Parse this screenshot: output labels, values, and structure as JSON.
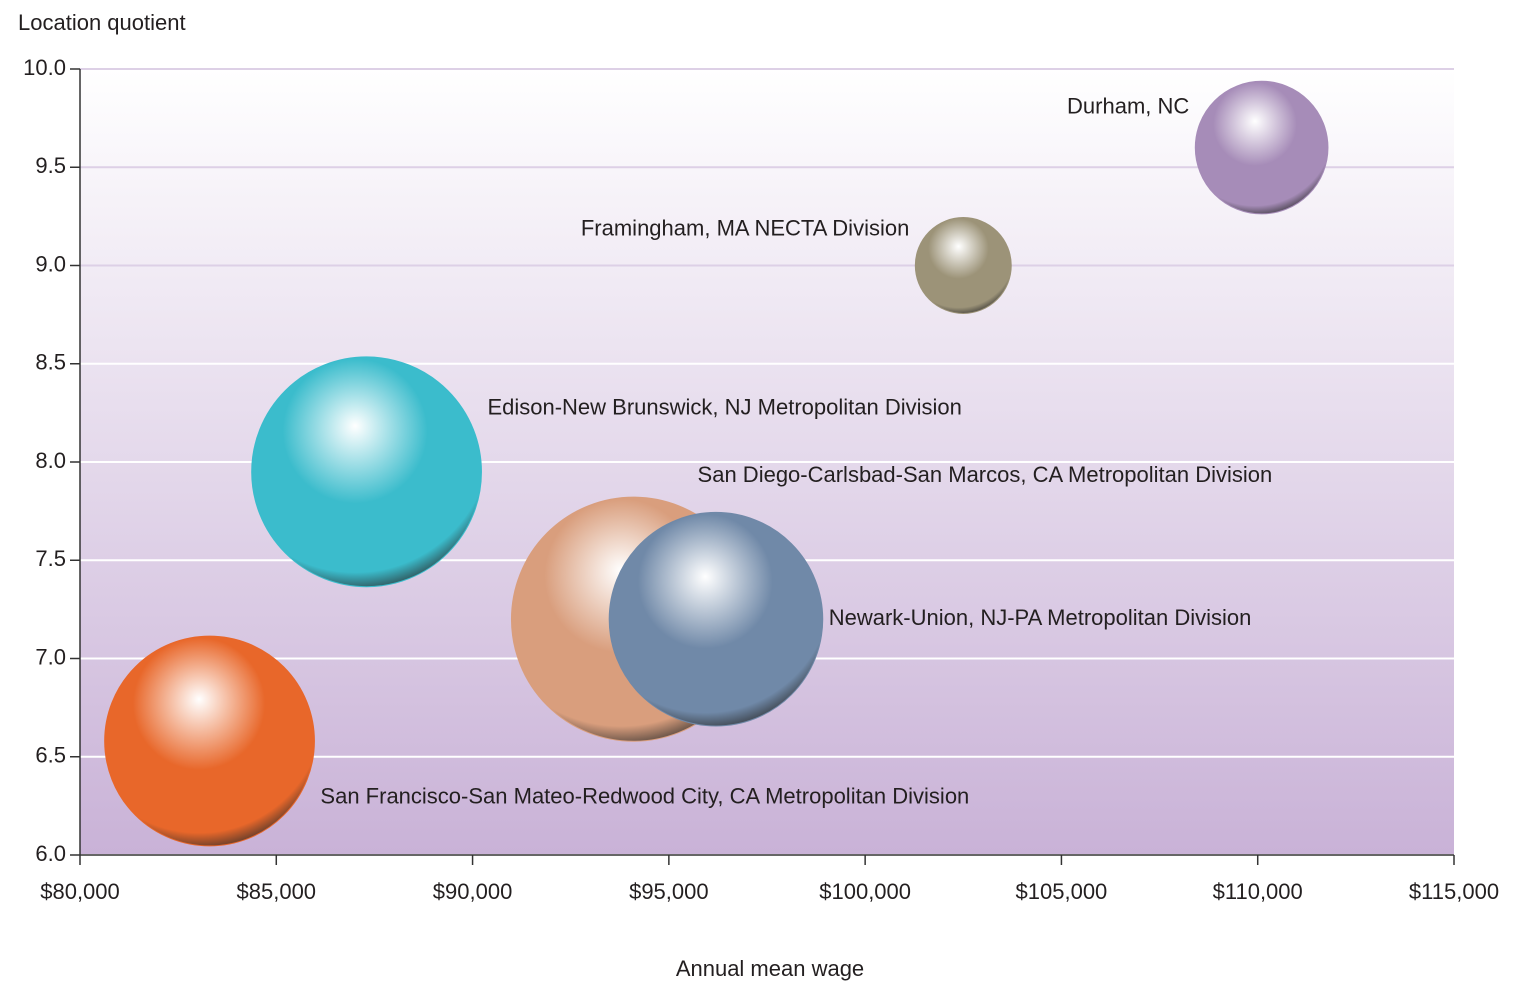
{
  "chart_data": {
    "type": "bubble",
    "y_label": "Location quotient",
    "x_label": "Annual mean wage",
    "xlim": [
      80000,
      115000
    ],
    "xticks": [
      {
        "value": 80000,
        "label": "$80,000"
      },
      {
        "value": 85000,
        "label": "$85,000"
      },
      {
        "value": 90000,
        "label": "$90,000"
      },
      {
        "value": 95000,
        "label": "$95,000"
      },
      {
        "value": 100000,
        "label": "$100,000"
      },
      {
        "value": 105000,
        "label": "$105,000"
      },
      {
        "value": 110000,
        "label": "$110,000"
      },
      {
        "value": 115000,
        "label": "$115,000"
      }
    ],
    "ylim": [
      6,
      10
    ],
    "yticks": [
      {
        "value": 6,
        "label": "6.0"
      },
      6.5,
      {
        "value": 7,
        "label": "7.0"
      },
      7.5,
      {
        "value": 8,
        "label": "8.0"
      },
      8.5,
      {
        "value": 9,
        "label": "9.0"
      },
      9.5,
      {
        "value": 10,
        "label": "10.0"
      }
    ],
    "grid": true,
    "series": [
      {
        "name": "Durham, NC",
        "color": "#a68cb8",
        "x": [
          110100
        ],
        "values": [
          9.6
        ],
        "sizes": [
          44
        ]
      },
      {
        "name": "Framingham, MA NECTA Division",
        "color": "#9c9378",
        "x": [
          102500
        ],
        "values": [
          9.0
        ],
        "sizes": [
          23
        ]
      },
      {
        "name": "Edison-New Brunswick, NJ Metropolitan Division",
        "color": "#3bbccc",
        "x": [
          87300
        ],
        "values": [
          7.95
        ],
        "sizes": [
          132
        ]
      },
      {
        "name": "San Diego-Carlsbad-San Marcos, CA Metropolitan Division",
        "color": "#d99e7d",
        "x": [
          94100
        ],
        "values": [
          7.2
        ],
        "sizes": [
          149
        ]
      },
      {
        "name": "Newark-Union, NJ-PA Metropolitan Division",
        "color": "#7089a8",
        "x": [
          96200
        ],
        "values": [
          7.2
        ],
        "sizes": [
          114
        ]
      },
      {
        "name": "San Francisco-San Mateo-Redwood City, CA Metropolitan Division",
        "color": "#e8672a",
        "x": [
          83300
        ],
        "values": [
          6.58
        ],
        "sizes": [
          110
        ]
      }
    ]
  }
}
